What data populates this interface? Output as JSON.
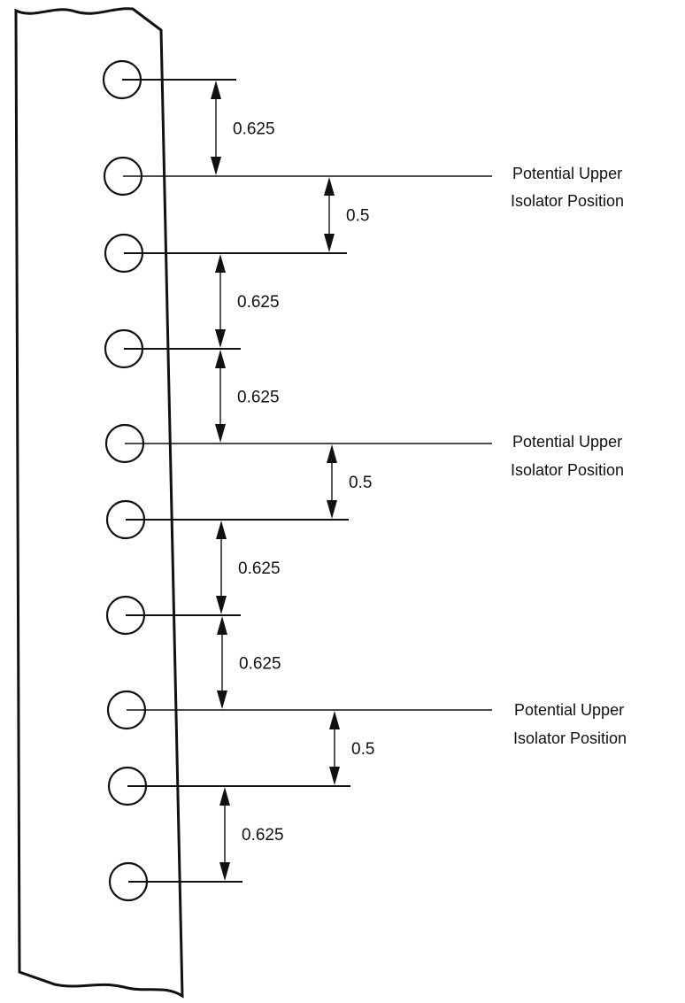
{
  "diagram": {
    "hole_count": 10,
    "dimensions": [
      "0.625",
      "0.5",
      "0.625",
      "0.625",
      "0.5",
      "0.625",
      "0.625",
      "0.5",
      "0.625"
    ],
    "isolator_label_line1": "Potential Upper",
    "isolator_label_line2": "Isolator Position",
    "isolator_after_hole": [
      1,
      4,
      7
    ],
    "colors": {
      "ink": "#111111",
      "background": "#ffffff"
    }
  }
}
